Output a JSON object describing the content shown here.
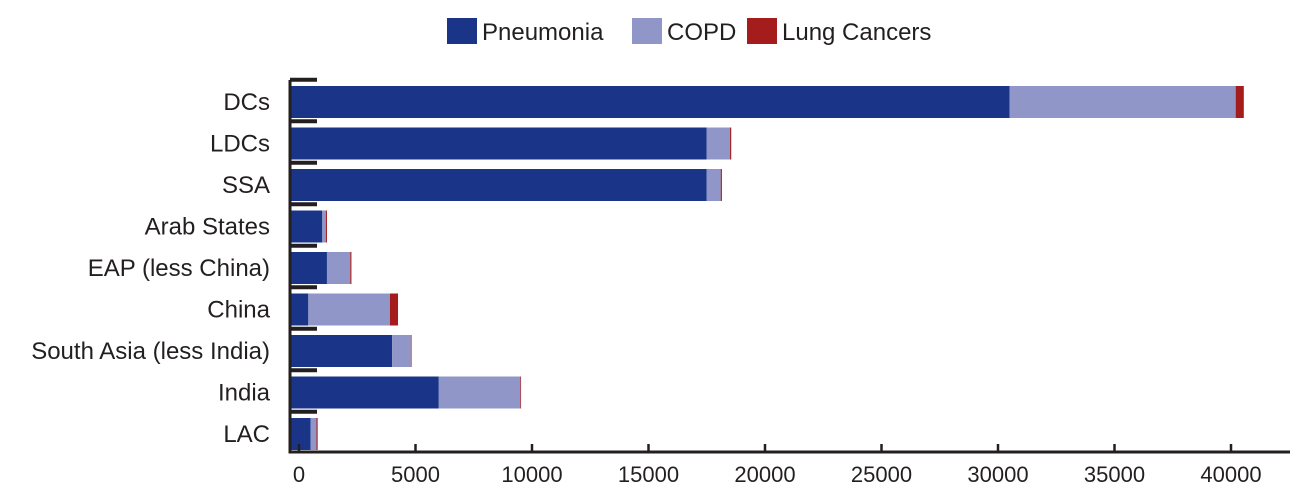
{
  "chart_data": {
    "type": "bar",
    "orientation": "horizontal",
    "stacked": true,
    "title": "",
    "xlabel": "",
    "ylabel": "",
    "categories": [
      "DCs",
      "LDCs",
      "SSA",
      "Arab States",
      "EAP (less China)",
      "China",
      "South Asia (less India)",
      "India",
      "LAC"
    ],
    "series": [
      {
        "name": "Pneumonia",
        "color": "#1a3588",
        "values": [
          30500,
          17500,
          17500,
          1000,
          1200,
          400,
          4000,
          6000,
          500
        ]
      },
      {
        "name": "COPD",
        "color": "#9097c8",
        "values": [
          9700,
          1000,
          600,
          150,
          1000,
          3500,
          800,
          3500,
          250
        ]
      },
      {
        "name": "Lung Cancers",
        "color": "#a51c1c",
        "values": [
          350,
          50,
          50,
          50,
          50,
          350,
          30,
          30,
          50
        ]
      }
    ],
    "xlim": [
      -500,
      42500
    ],
    "xticks": [
      0,
      5000,
      10000,
      15000,
      20000,
      25000,
      30000,
      35000,
      40000
    ],
    "grid": false,
    "legend_position": "top"
  }
}
